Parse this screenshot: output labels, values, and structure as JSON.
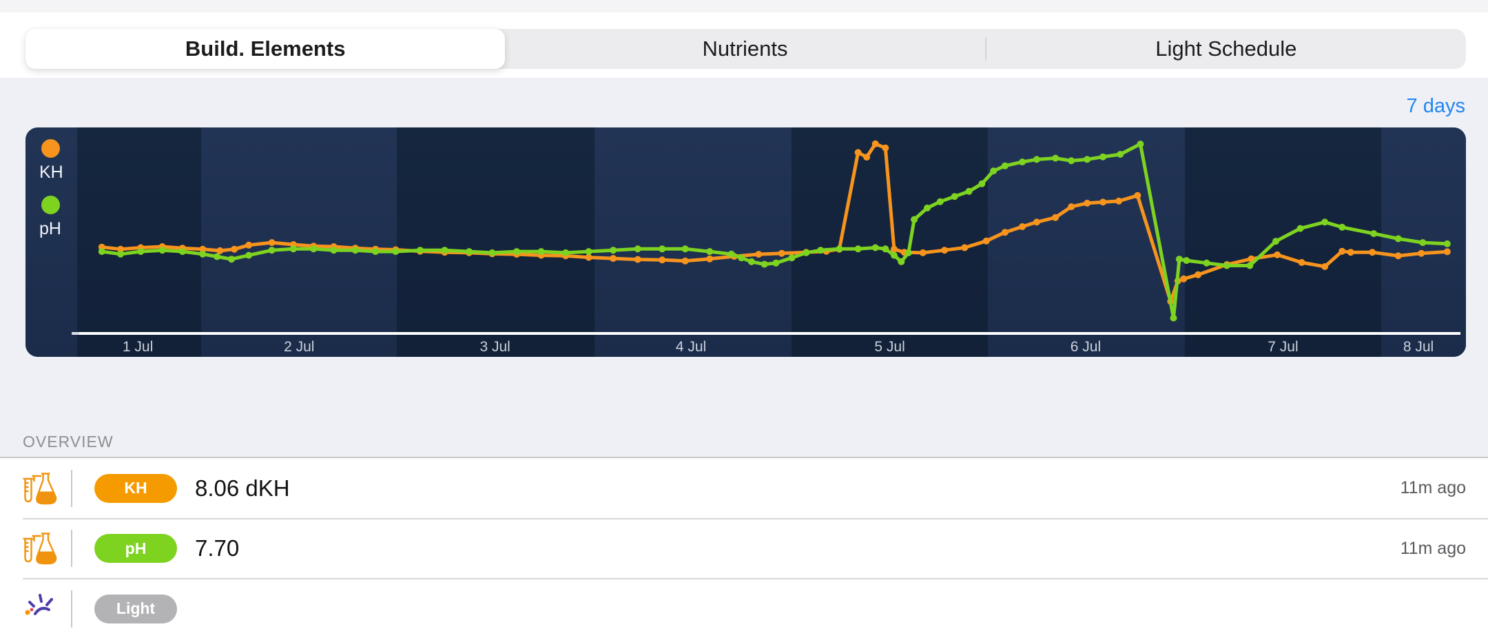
{
  "tabs": {
    "items": [
      {
        "label": "Build. Elements",
        "selected": true
      },
      {
        "label": "Nutrients",
        "selected": false
      },
      {
        "label": "Light Schedule",
        "selected": false
      }
    ]
  },
  "range_link": {
    "label": "7 days"
  },
  "chart_data": {
    "type": "line",
    "title": "",
    "xlabel": "",
    "ylabel": "",
    "grid": false,
    "legend_position": "inside-top-left",
    "legend": [
      {
        "label": "KH",
        "color": "#F7941D"
      },
      {
        "label": "pH",
        "color": "#7ED321"
      }
    ],
    "plot": {
      "background_dark": "#12233F",
      "background_light": "#213353",
      "axis_line_color": "#FFFFFF",
      "tick_label_color": "#CBD1DB",
      "band_stops_pct": [
        [
          0,
          3.6,
          "light"
        ],
        [
          3.6,
          12.2,
          "dark"
        ],
        [
          12.2,
          25.8,
          "light"
        ],
        [
          25.8,
          39.5,
          "dark"
        ],
        [
          39.5,
          53.2,
          "light"
        ],
        [
          53.2,
          66.8,
          "dark"
        ],
        [
          66.8,
          80.5,
          "light"
        ],
        [
          80.5,
          94.1,
          "dark"
        ],
        [
          94.1,
          100,
          "light"
        ]
      ]
    },
    "x_ticks": [
      {
        "label": "1 Jul",
        "x_pct": 7.8
      },
      {
        "label": "2 Jul",
        "x_pct": 19.0
      },
      {
        "label": "3 Jul",
        "x_pct": 32.6
      },
      {
        "label": "4 Jul",
        "x_pct": 46.2
      },
      {
        "label": "5 Jul",
        "x_pct": 60.0
      },
      {
        "label": "6 Jul",
        "x_pct": 73.6
      },
      {
        "label": "7 Jul",
        "x_pct": 87.3
      },
      {
        "label": "8 Jul",
        "x_pct": 96.7
      }
    ],
    "series": [
      {
        "name": "KH",
        "unit": "dKH",
        "color": "#F7941D",
        "ylim": [
          6.5,
          10.5
        ],
        "points": [
          [
            5.3,
            8.16
          ],
          [
            6.6,
            8.12
          ],
          [
            8.0,
            8.15
          ],
          [
            9.5,
            8.17
          ],
          [
            10.9,
            8.14
          ],
          [
            12.3,
            8.12
          ],
          [
            13.5,
            8.09
          ],
          [
            14.5,
            8.12
          ],
          [
            15.5,
            8.2
          ],
          [
            17.1,
            8.25
          ],
          [
            18.6,
            8.21
          ],
          [
            20.0,
            8.18
          ],
          [
            21.4,
            8.17
          ],
          [
            22.9,
            8.14
          ],
          [
            24.3,
            8.12
          ],
          [
            25.7,
            8.11
          ],
          [
            27.4,
            8.08
          ],
          [
            29.1,
            8.06
          ],
          [
            30.8,
            8.05
          ],
          [
            32.4,
            8.03
          ],
          [
            34.1,
            8.02
          ],
          [
            35.8,
            8.0
          ],
          [
            37.5,
            7.99
          ],
          [
            39.1,
            7.96
          ],
          [
            40.8,
            7.94
          ],
          [
            42.5,
            7.92
          ],
          [
            44.2,
            7.91
          ],
          [
            45.8,
            7.89
          ],
          [
            47.5,
            7.93
          ],
          [
            49.2,
            7.98
          ],
          [
            50.9,
            8.02
          ],
          [
            52.5,
            8.04
          ],
          [
            54.2,
            8.06
          ],
          [
            55.6,
            8.08
          ],
          [
            56.5,
            8.12
          ],
          [
            57.8,
            10.01
          ],
          [
            58.4,
            9.92
          ],
          [
            59.0,
            10.18
          ],
          [
            59.7,
            10.1
          ],
          [
            60.3,
            8.12
          ],
          [
            61.0,
            8.06
          ],
          [
            62.3,
            8.05
          ],
          [
            63.8,
            8.1
          ],
          [
            65.2,
            8.15
          ],
          [
            66.7,
            8.28
          ],
          [
            68.0,
            8.45
          ],
          [
            69.2,
            8.56
          ],
          [
            70.2,
            8.65
          ],
          [
            71.5,
            8.74
          ],
          [
            72.6,
            8.95
          ],
          [
            73.7,
            9.02
          ],
          [
            74.8,
            9.04
          ],
          [
            75.9,
            9.06
          ],
          [
            77.2,
            9.17
          ],
          [
            79.5,
            7.1
          ],
          [
            80.0,
            7.5
          ],
          [
            80.4,
            7.54
          ],
          [
            81.4,
            7.62
          ],
          [
            83.4,
            7.82
          ],
          [
            85.1,
            7.93
          ],
          [
            86.9,
            8.01
          ],
          [
            88.6,
            7.86
          ],
          [
            90.2,
            7.78
          ],
          [
            91.4,
            8.08
          ],
          [
            92.0,
            8.06
          ],
          [
            93.5,
            8.06
          ],
          [
            95.3,
            7.99
          ],
          [
            96.9,
            8.04
          ],
          [
            98.7,
            8.07
          ]
        ]
      },
      {
        "name": "pH",
        "unit": "",
        "color": "#7ED321",
        "ylim": [
          7.0,
          8.6
        ],
        "points": [
          [
            5.3,
            7.63
          ],
          [
            6.6,
            7.61
          ],
          [
            8.0,
            7.63
          ],
          [
            9.5,
            7.64
          ],
          [
            10.9,
            7.63
          ],
          [
            12.3,
            7.61
          ],
          [
            13.3,
            7.59
          ],
          [
            14.3,
            7.57
          ],
          [
            15.5,
            7.6
          ],
          [
            17.1,
            7.64
          ],
          [
            18.6,
            7.65
          ],
          [
            20.0,
            7.65
          ],
          [
            21.4,
            7.64
          ],
          [
            22.9,
            7.64
          ],
          [
            24.3,
            7.63
          ],
          [
            25.7,
            7.63
          ],
          [
            27.4,
            7.64
          ],
          [
            29.1,
            7.64
          ],
          [
            30.8,
            7.63
          ],
          [
            32.4,
            7.62
          ],
          [
            34.1,
            7.63
          ],
          [
            35.8,
            7.63
          ],
          [
            37.5,
            7.62
          ],
          [
            39.1,
            7.63
          ],
          [
            40.8,
            7.64
          ],
          [
            42.5,
            7.65
          ],
          [
            44.2,
            7.65
          ],
          [
            45.8,
            7.65
          ],
          [
            47.5,
            7.63
          ],
          [
            49.0,
            7.61
          ],
          [
            49.7,
            7.58
          ],
          [
            50.4,
            7.55
          ],
          [
            51.3,
            7.53
          ],
          [
            52.1,
            7.54
          ],
          [
            53.2,
            7.58
          ],
          [
            54.2,
            7.62
          ],
          [
            55.2,
            7.64
          ],
          [
            56.5,
            7.65
          ],
          [
            57.8,
            7.65
          ],
          [
            59.0,
            7.66
          ],
          [
            59.7,
            7.65
          ],
          [
            60.3,
            7.6
          ],
          [
            60.8,
            7.55
          ],
          [
            61.3,
            7.62
          ],
          [
            61.7,
            7.88
          ],
          [
            62.6,
            7.97
          ],
          [
            63.5,
            8.02
          ],
          [
            64.5,
            8.06
          ],
          [
            65.5,
            8.1
          ],
          [
            66.4,
            8.16
          ],
          [
            67.2,
            8.26
          ],
          [
            68.0,
            8.3
          ],
          [
            69.2,
            8.33
          ],
          [
            70.2,
            8.35
          ],
          [
            71.5,
            8.36
          ],
          [
            72.6,
            8.34
          ],
          [
            73.7,
            8.35
          ],
          [
            74.8,
            8.37
          ],
          [
            76.0,
            8.39
          ],
          [
            77.4,
            8.47
          ],
          [
            79.7,
            7.11
          ],
          [
            80.1,
            7.57
          ],
          [
            80.6,
            7.56
          ],
          [
            82.0,
            7.54
          ],
          [
            83.4,
            7.52
          ],
          [
            85.0,
            7.52
          ],
          [
            86.8,
            7.71
          ],
          [
            88.5,
            7.81
          ],
          [
            90.2,
            7.86
          ],
          [
            91.4,
            7.82
          ],
          [
            93.6,
            7.77
          ],
          [
            95.3,
            7.73
          ],
          [
            97.0,
            7.7
          ],
          [
            98.7,
            7.69
          ]
        ]
      }
    ]
  },
  "overview": {
    "heading": "OVERVIEW",
    "rows": [
      {
        "icon": "flask-icon",
        "badge": "KH",
        "badge_color": "#F59B00",
        "value": "8.06 dKH",
        "time": "11m ago"
      },
      {
        "icon": "flask-icon",
        "badge": "pH",
        "badge_color": "#7ED321",
        "value": "7.70",
        "time": "11m ago"
      },
      {
        "icon": "light-icon",
        "badge": "Light",
        "badge_color": "#B3B3B5",
        "value": "",
        "time": ""
      }
    ]
  }
}
